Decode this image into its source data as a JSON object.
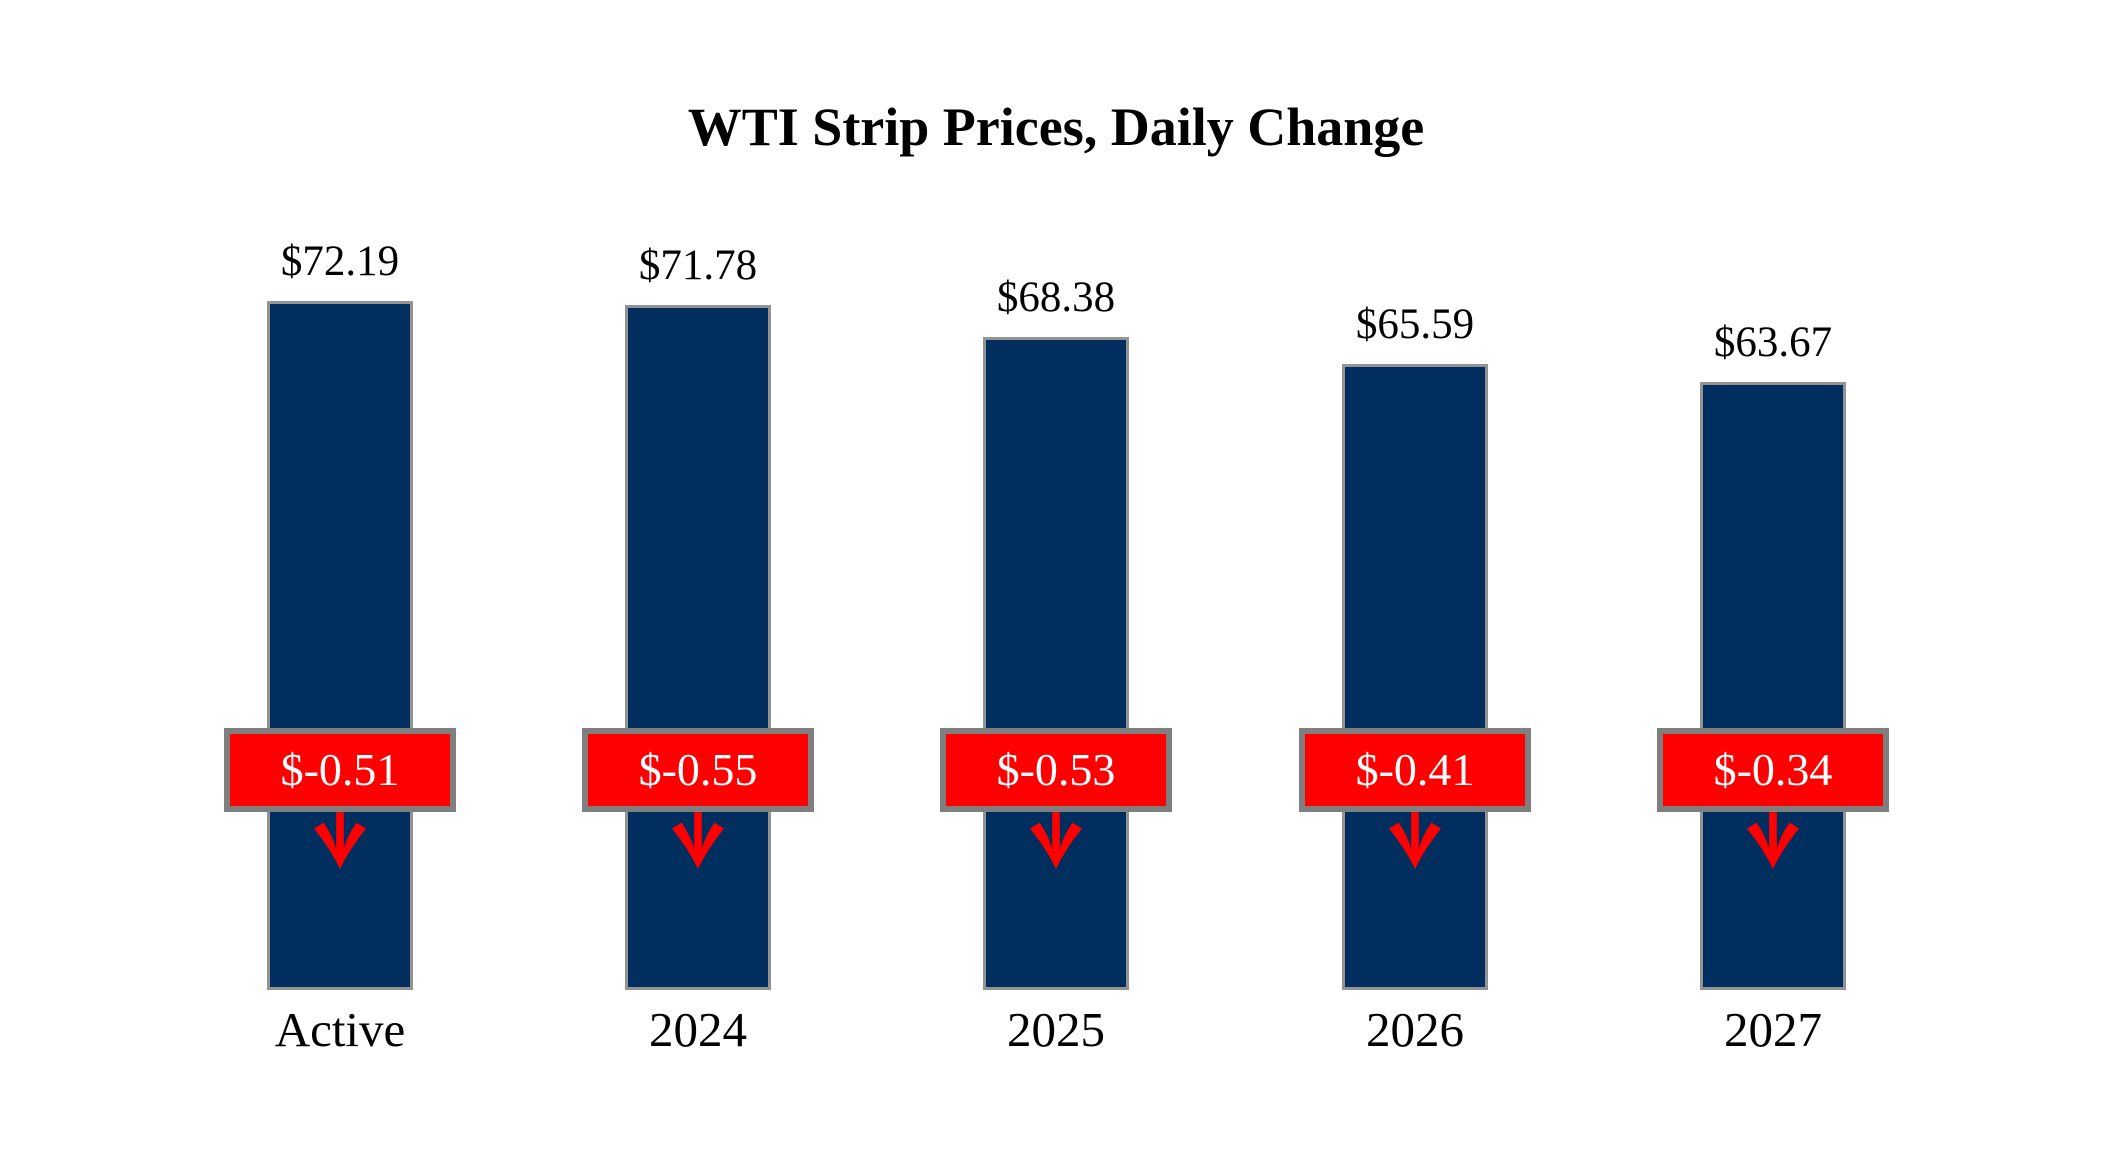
{
  "title": "WTI Strip Prices, Daily Change",
  "colors": {
    "bar_fill": "#002E5E",
    "bar_border": "#939393",
    "badge_fill": "#FF0000",
    "badge_border": "#7F7F7F",
    "badge_text": "#FFFFFF",
    "arrow": "#FF0000",
    "background": "#FFFFFF",
    "text": "#000000"
  },
  "chart_data": {
    "type": "bar",
    "title": "WTI Strip Prices, Daily Change",
    "categories": [
      "Active",
      "2024",
      "2025",
      "2026",
      "2027"
    ],
    "values": [
      72.19,
      71.78,
      68.38,
      65.59,
      63.67
    ],
    "price_labels": [
      "$72.19",
      "$71.78",
      "$68.38",
      "$65.59",
      "$63.67"
    ],
    "daily_changes": [
      -0.51,
      -0.55,
      -0.53,
      -0.41,
      -0.34
    ],
    "change_labels": [
      "$-0.51",
      "$-0.55",
      "$-0.53",
      "$-0.41",
      "$-0.34"
    ],
    "change_direction": "down",
    "xlabel": "",
    "ylabel": "",
    "ylim": [
      0,
      75.5
    ],
    "grid": false,
    "legend": false,
    "axes_drawn": false,
    "bar_value_position": "above-bar",
    "change_badge_position": "fixed-band-over-bars"
  }
}
